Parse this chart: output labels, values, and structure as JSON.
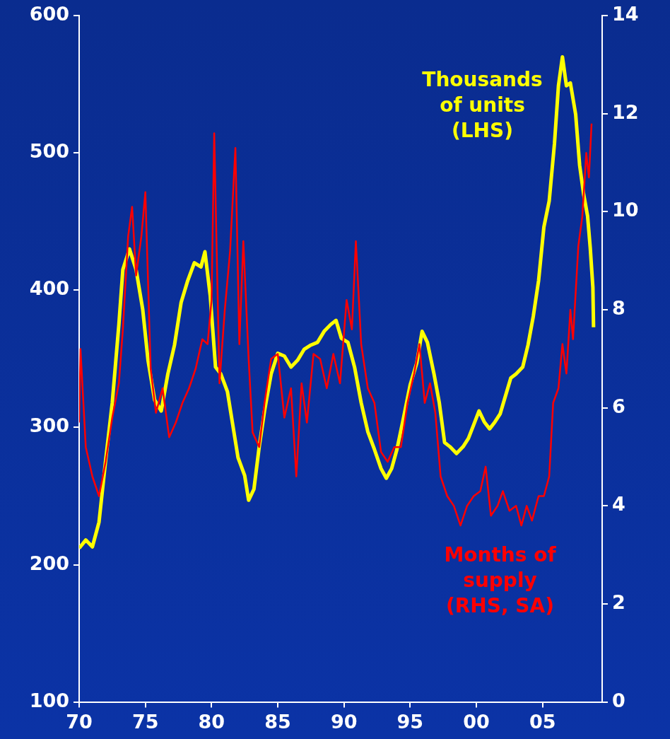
{
  "chart_data": {
    "type": "line",
    "xlim": [
      1970,
      2009.5
    ],
    "xticks": [
      {
        "value": 1970,
        "label": "70"
      },
      {
        "value": 1975,
        "label": "75"
      },
      {
        "value": 1980,
        "label": "80"
      },
      {
        "value": 1985,
        "label": "85"
      },
      {
        "value": 1990,
        "label": "90"
      },
      {
        "value": 1995,
        "label": "95"
      },
      {
        "value": 2000,
        "label": "00"
      },
      {
        "value": 2005,
        "label": "05"
      }
    ],
    "ylim": [
      100,
      600
    ],
    "yticks": [
      100,
      200,
      300,
      400,
      500,
      600
    ],
    "y2lim": [
      0,
      14
    ],
    "y2ticks": [
      0,
      2,
      4,
      6,
      8,
      10,
      12,
      14
    ],
    "grid": false,
    "legend": false,
    "marker": "none",
    "line_style": "solid",
    "series": [
      {
        "name": "Thousands of units (LHS)",
        "color": "#ffff00",
        "axis": "y",
        "x": [
          1970,
          1970.5,
          1971,
          1971.5,
          1972,
          1972.5,
          1973,
          1973.3,
          1973.8,
          1974.3,
          1974.8,
          1975.2,
          1975.7,
          1976.2,
          1976.7,
          1977.2,
          1977.7,
          1978.2,
          1978.7,
          1979.2,
          1979.5,
          1979.9,
          1980.3,
          1980.7,
          1981.2,
          1981.6,
          1982,
          1982.5,
          1982.8,
          1983.2,
          1983.6,
          1984,
          1984.5,
          1985,
          1985.5,
          1986,
          1986.5,
          1987,
          1987.5,
          1988,
          1988.5,
          1989,
          1989.4,
          1989.8,
          1990.3,
          1990.8,
          1991.3,
          1991.8,
          1992.3,
          1992.8,
          1993.2,
          1993.6,
          1994,
          1994.5,
          1995,
          1995.5,
          1995.9,
          1996.3,
          1996.8,
          1997.2,
          1997.6,
          1998,
          1998.5,
          1999,
          1999.4,
          1999.8,
          2000.2,
          2000.6,
          2001,
          2001.4,
          2001.8,
          2002.2,
          2002.6,
          2003,
          2003.5,
          2003.9,
          2004.3,
          2004.7,
          2005.1,
          2005.5,
          2005.9,
          2006.2,
          2006.5,
          2006.8,
          2007.1,
          2007.5,
          2007.8,
          2008.1,
          2008.4,
          2008.6,
          2008.8,
          2008.85
        ],
        "values": [
          212,
          218,
          213,
          231,
          276,
          318,
          375,
          415,
          430,
          415,
          386,
          349,
          320,
          312,
          339,
          360,
          391,
          407,
          420,
          417,
          428,
          396,
          344,
          339,
          326,
          302,
          278,
          265,
          247,
          255,
          286,
          312,
          339,
          354,
          352,
          344,
          349,
          357,
          360,
          362,
          370,
          375,
          378,
          365,
          362,
          344,
          318,
          297,
          284,
          270,
          263,
          270,
          284,
          307,
          331,
          347,
          370,
          362,
          339,
          318,
          289,
          286,
          281,
          286,
          292,
          302,
          312,
          304,
          299,
          304,
          310,
          323,
          336,
          339,
          344,
          360,
          381,
          407,
          446,
          465,
          507,
          549,
          570,
          549,
          551,
          528,
          491,
          470,
          454,
          431,
          402,
          373
        ]
      },
      {
        "name": "Months of supply (RHS, SA)",
        "color": "#ff0000",
        "axis": "y2",
        "x": [
          1970,
          1970.1,
          1970.5,
          1971,
          1971.5,
          1972,
          1972.5,
          1973,
          1973.3,
          1973.7,
          1974,
          1974.3,
          1974.7,
          1975,
          1975.4,
          1975.8,
          1976.3,
          1976.8,
          1977.3,
          1977.8,
          1978.3,
          1978.8,
          1979.3,
          1979.7,
          1980,
          1980.2,
          1980.6,
          1981,
          1981.4,
          1981.8,
          1982.1,
          1982.4,
          1982.8,
          1983.1,
          1983.6,
          1984,
          1984.5,
          1985,
          1985.5,
          1986,
          1986.4,
          1986.8,
          1987.2,
          1987.7,
          1988.2,
          1988.7,
          1989.2,
          1989.7,
          1990.2,
          1990.6,
          1990.9,
          1991.3,
          1991.8,
          1992.3,
          1992.8,
          1993.3,
          1993.8,
          1994.3,
          1994.8,
          1995.3,
          1995.7,
          1996.1,
          1996.5,
          1996.9,
          1997.3,
          1997.8,
          1998.3,
          1998.8,
          1999.3,
          1999.8,
          2000.3,
          2000.7,
          2001.1,
          2001.6,
          2002,
          2002.5,
          2003,
          2003.4,
          2003.8,
          2004.2,
          2004.7,
          2005.1,
          2005.5,
          2005.8,
          2006.2,
          2006.5,
          2006.8,
          2007.1,
          2007.3,
          2007.7,
          2008,
          2008.3,
          2008.5,
          2008.7
        ],
        "values": [
          5.7,
          7.2,
          5.2,
          4.6,
          4.2,
          4.9,
          5.8,
          6.5,
          7.6,
          9.5,
          10.1,
          8.7,
          9.5,
          10.4,
          6.8,
          5.9,
          6.4,
          5.4,
          5.7,
          6.1,
          6.4,
          6.8,
          7.4,
          7.3,
          8.2,
          11.6,
          6.5,
          8,
          9.2,
          11.3,
          7.3,
          9.4,
          7,
          5.5,
          5.2,
          6.1,
          7,
          7.1,
          5.8,
          6.4,
          4.6,
          6.5,
          5.7,
          7.1,
          7,
          6.4,
          7.1,
          6.5,
          8.2,
          7.6,
          9.4,
          7.3,
          6.4,
          6.1,
          5.1,
          4.9,
          5.2,
          5.2,
          6.1,
          6.7,
          7.3,
          6.1,
          6.5,
          5.9,
          4.6,
          4.2,
          4,
          3.6,
          4,
          4.2,
          4.3,
          4.8,
          3.8,
          4,
          4.3,
          3.9,
          4,
          3.6,
          4,
          3.7,
          4.2,
          4.2,
          4.6,
          6.1,
          6.4,
          7.3,
          6.7,
          8,
          7.4,
          9.3,
          9.9,
          11.2,
          10.7,
          11.8
        ]
      }
    ]
  }
}
